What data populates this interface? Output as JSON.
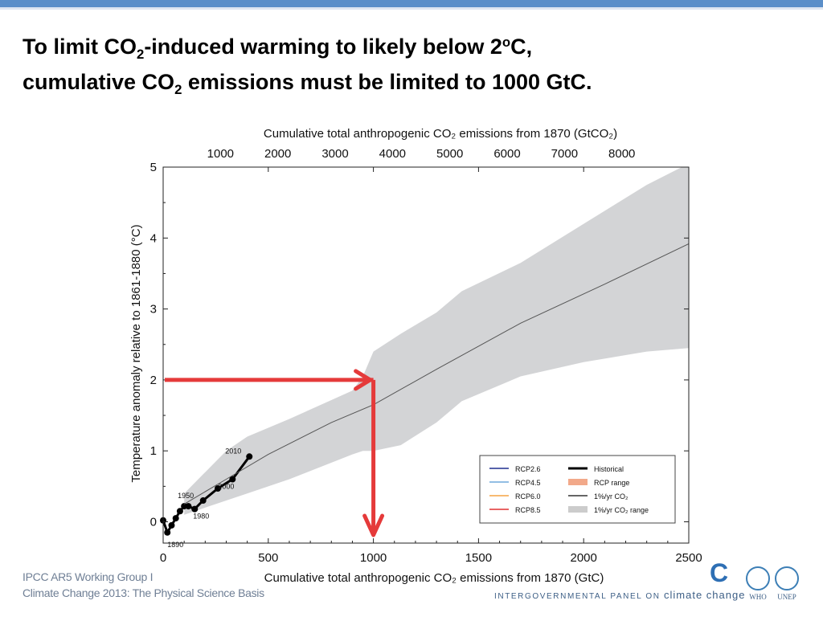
{
  "slide": {
    "title_parts": {
      "l1_a": "To limit CO",
      "l1_sub": "2",
      "l1_b": "-induced warming to likely below 2",
      "l1_sup": "o",
      "l1_c": "C,",
      "l2_a": "cumulative CO",
      "l2_sub": "2",
      "l2_b": " emissions must be limited to 1000 GtC."
    },
    "footer": {
      "line1": "IPCC AR5 Working Group I",
      "line2": "Climate Change 2013: The Physical Science Basis"
    },
    "org": {
      "logo_letter": "C",
      "name_prefix": "INTERGOVERNMENTAL PANEL ON",
      "name_suffix": "climate change",
      "partners": [
        "WHO",
        "UNEP"
      ]
    },
    "accent_color": "#5b8fc9"
  },
  "chart_data": {
    "type": "line",
    "top_axis_label": "Cumulative total anthropogenic CO₂ emissions from 1870 (GtCO₂)",
    "top_ticks": [
      1000,
      2000,
      3000,
      4000,
      5000,
      6000,
      7000,
      8000
    ],
    "xlabel": "Cumulative total anthropogenic CO₂ emissions from 1870 (GtC)",
    "ylabel": "Temperature anomaly relative to 1861-1880 (°C)",
    "xlim": [
      0,
      2500
    ],
    "ylim": [
      -0.3,
      5
    ],
    "x_ticks": [
      0,
      500,
      1000,
      1500,
      2000,
      2500
    ],
    "y_ticks": [
      0,
      1,
      2,
      3,
      4,
      5
    ],
    "grid": false,
    "legend_position": "bottom-right",
    "legend": [
      {
        "label": "RCP2.6",
        "color": "#1f2f8f",
        "style": "line"
      },
      {
        "label": "RCP4.5",
        "color": "#6fa8dc",
        "style": "line"
      },
      {
        "label": "RCP6.0",
        "color": "#f5a443",
        "style": "line"
      },
      {
        "label": "RCP8.5",
        "color": "#e03030",
        "style": "line"
      },
      {
        "label": "Historical",
        "color": "#000000",
        "style": "thick-line"
      },
      {
        "label": "RCP range",
        "color": "#f2a98a",
        "style": "patch"
      },
      {
        "label": "1%/yr CO₂",
        "color": "#333333",
        "style": "line"
      },
      {
        "label": "1%/yr CO₂ range",
        "color": "#cccccc",
        "style": "patch"
      }
    ],
    "series": [
      {
        "name": "Historical",
        "color": "#000000",
        "x": [
          0,
          20,
          40,
          60,
          80,
          100,
          120,
          150,
          190,
          260,
          330,
          410
        ],
        "y": [
          0.02,
          -0.15,
          -0.05,
          0.05,
          0.15,
          0.22,
          0.22,
          0.18,
          0.3,
          0.47,
          0.6,
          0.92
        ],
        "point_labels": [
          {
            "text": "1890",
            "index": 1
          },
          {
            "text": "1950",
            "index": 5
          },
          {
            "text": "1980",
            "index": 7
          },
          {
            "text": "2000",
            "index": 10
          },
          {
            "text": "2010",
            "index": 11
          }
        ]
      },
      {
        "name": "1%/yr CO₂",
        "color": "#555555",
        "x": [
          100,
          300,
          500,
          800,
          1000,
          1300,
          1700,
          2100,
          2500
        ],
        "y": [
          0.25,
          0.6,
          0.95,
          1.4,
          1.65,
          2.15,
          2.8,
          3.35,
          3.92
        ]
      }
    ],
    "range_band": {
      "name": "1%/yr CO₂ range",
      "color": "#d3d4d6",
      "x": [
        100,
        300,
        400,
        600,
        900,
        950,
        1000,
        1130,
        1300,
        1420,
        1700,
        2000,
        2300,
        2500
      ],
      "upper": [
        0.4,
        1.0,
        1.2,
        1.45,
        1.85,
        2.05,
        2.4,
        2.65,
        2.95,
        3.25,
        3.65,
        4.2,
        4.75,
        5.05
      ],
      "lower": [
        0.1,
        0.3,
        0.4,
        0.6,
        0.95,
        1.0,
        1.0,
        1.08,
        1.4,
        1.7,
        2.05,
        2.25,
        2.4,
        2.45
      ]
    },
    "annotation": {
      "color": "#e53a3a",
      "target_temperature": 2,
      "target_emissions": 1000
    }
  }
}
